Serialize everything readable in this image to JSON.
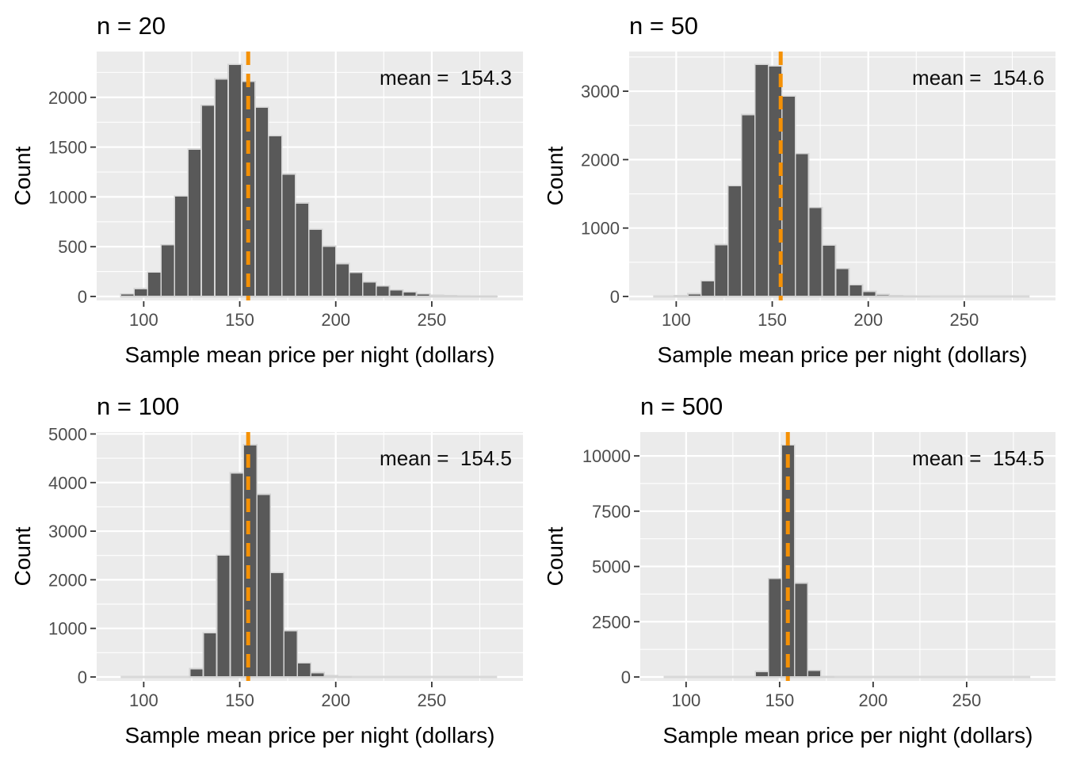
{
  "figure": {
    "xlabel": "Sample mean price per night (dollars)",
    "ylabel": "Count",
    "colors": {
      "background": "#ffffff",
      "panel_bg": "#EBEBEB",
      "grid_major": "#FFFFFF",
      "grid_minor": "#F7F7F7",
      "bar_fill": "#595959",
      "bar_stroke": "#D4D4D4",
      "baseline": "#D9D9D9",
      "mean_line": "#F59105",
      "axis_text": "#4D4D4D",
      "tick_mark": "#333333",
      "title_text": "#000000"
    }
  },
  "chart_data": [
    {
      "type": "bar",
      "title": "n = 20",
      "annotation": "mean =  154.3",
      "mean_line_x": 154.4,
      "xlabel": "Sample mean price per night (dollars)",
      "ylabel": "Count",
      "bin_width": 7,
      "bin_start": 88,
      "counts": [
        25,
        80,
        245,
        520,
        1010,
        1480,
        1920,
        2185,
        2330,
        2160,
        1900,
        1615,
        1230,
        940,
        675,
        505,
        330,
        240,
        145,
        105,
        65,
        45,
        25,
        12,
        8,
        5,
        3,
        2
      ],
      "x_ticks": [
        100,
        150,
        200,
        250
      ],
      "y_ticks": [
        0,
        500,
        1000,
        1500,
        2000
      ],
      "xlim": [
        75.5,
        297.5
      ],
      "ylim": [
        0,
        2460
      ],
      "baseline_extent": [
        88,
        284
      ],
      "grid": true,
      "legend": "none"
    },
    {
      "type": "bar",
      "title": "n = 50",
      "annotation": "mean =  154.6",
      "mean_line_x": 154.4,
      "xlabel": "Sample mean price per night (dollars)",
      "ylabel": "Count",
      "bin_width": 7,
      "bin_start": 99,
      "counts": [
        15,
        40,
        230,
        760,
        1620,
        2660,
        3390,
        3370,
        2930,
        2090,
        1300,
        750,
        410,
        170,
        75,
        30,
        12,
        6,
        3
      ],
      "x_ticks": [
        100,
        150,
        200,
        250
      ],
      "y_ticks": [
        0,
        1000,
        2000,
        3000
      ],
      "xlim": [
        75.5,
        297.5
      ],
      "ylim": [
        0,
        3580
      ],
      "baseline_extent": [
        88,
        284
      ],
      "grid": true,
      "legend": "none"
    },
    {
      "type": "bar",
      "title": "n = 100",
      "annotation": "mean =  154.5",
      "mean_line_x": 154.4,
      "xlabel": "Sample mean price per night (dollars)",
      "ylabel": "Count",
      "bin_width": 7,
      "bin_start": 124,
      "counts": [
        170,
        910,
        2510,
        4200,
        4780,
        3760,
        2150,
        950,
        290,
        90,
        25,
        8
      ],
      "x_ticks": [
        100,
        150,
        200,
        250
      ],
      "y_ticks": [
        0,
        1000,
        2000,
        3000,
        4000,
        5000
      ],
      "xlim": [
        75.5,
        297.5
      ],
      "ylim": [
        0,
        5040
      ],
      "baseline_extent": [
        88,
        284
      ],
      "grid": true,
      "legend": "none"
    },
    {
      "type": "bar",
      "title": "n = 500",
      "annotation": "mean =  154.5",
      "mean_line_x": 154.4,
      "xlabel": "Sample mean price per night (dollars)",
      "ylabel": "Count",
      "bin_width": 7,
      "bin_start": 137,
      "counts": [
        250,
        4450,
        10500,
        4250,
        300,
        20
      ],
      "x_ticks": [
        100,
        150,
        200,
        250
      ],
      "y_ticks": [
        0,
        2500,
        5000,
        7500,
        10000
      ],
      "xlim": [
        75.5,
        297.5
      ],
      "ylim": [
        0,
        11080
      ],
      "baseline_extent": [
        88,
        284
      ],
      "grid": true,
      "legend": "none"
    }
  ]
}
